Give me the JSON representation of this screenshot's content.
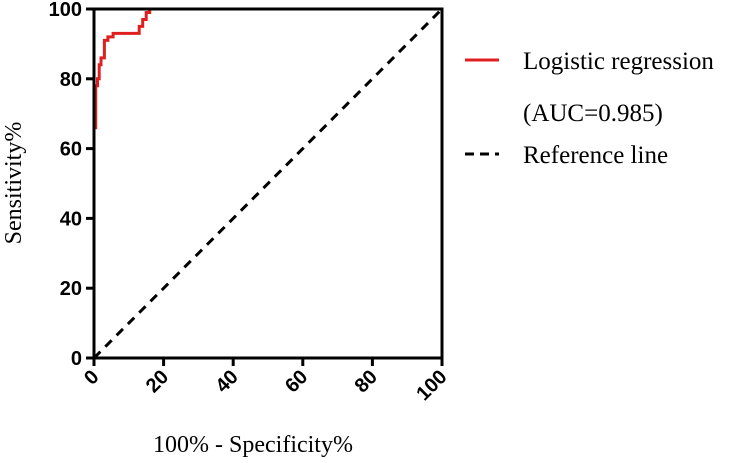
{
  "chart_data": {
    "type": "line",
    "xlabel": "100% - Specificity%",
    "ylabel": "Sensitivity%",
    "xlim": [
      0,
      100
    ],
    "ylim": [
      0,
      100
    ],
    "x_ticks": [
      "0",
      "20",
      "40",
      "60",
      "80",
      "100"
    ],
    "y_ticks": [
      "0",
      "20",
      "40",
      "60",
      "80",
      "100"
    ],
    "grid": false,
    "legend_position": "right",
    "series": [
      {
        "name": "Logistic regression",
        "color": "#e02020",
        "style": "solid",
        "x": [
          0,
          0,
          0.5,
          0.5,
          1,
          1,
          1.5,
          1.5,
          2,
          2,
          3,
          3,
          4,
          4,
          5.5,
          5.5,
          13,
          13,
          14,
          14,
          15,
          15,
          16,
          16,
          100
        ],
        "y": [
          0,
          66,
          66,
          78,
          78,
          80,
          80,
          84,
          84,
          86,
          86,
          91,
          91,
          92,
          92,
          93,
          93,
          95,
          95,
          97,
          97,
          99,
          99,
          100,
          100
        ]
      },
      {
        "name": "Reference line",
        "color": "#000000",
        "style": "dashed",
        "x": [
          0,
          100
        ],
        "y": [
          0,
          100
        ]
      }
    ],
    "legend": [
      {
        "label": "Logistic regression",
        "color": "#e02020",
        "style": "solid"
      },
      {
        "label": "(AUC=0.985)",
        "color": "",
        "style": "none"
      },
      {
        "label": "Reference line",
        "color": "#000000",
        "style": "dashed"
      }
    ]
  }
}
